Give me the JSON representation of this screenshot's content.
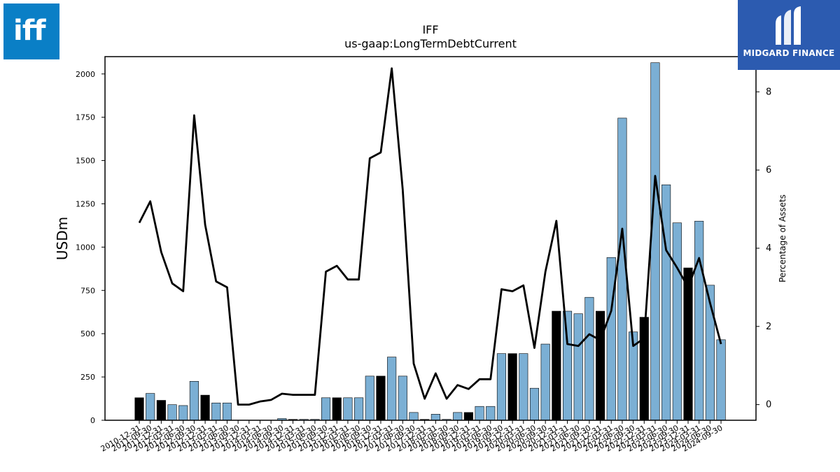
{
  "logos": {
    "left_text": "iff",
    "right_text": "MIDGARD FINANCE",
    "left_color": "#0a7fc6",
    "right_color": "#2c5bb0"
  },
  "chart_data": {
    "type": "bar",
    "title": "IFF",
    "subtitle": "us-gaap:LongTermDebtCurrent",
    "ylabel": "USDm",
    "y2label": "Percentage of Assets",
    "ylim": [
      0,
      2100
    ],
    "y2lim": [
      -0.4,
      8.9
    ],
    "yticks": [
      0,
      250,
      500,
      750,
      1000,
      1250,
      1500,
      1750,
      2000
    ],
    "y2ticks": [
      0,
      2,
      4,
      6,
      8
    ],
    "grid": false,
    "colors": {
      "bar_q4": "#000000",
      "bar_other": "#7bafd4",
      "line": "#000000"
    },
    "categories": [
      "2010-12-31",
      "2011-09-30",
      "2011-12-31",
      "2012-03-31",
      "2012-06-30",
      "2012-09-30",
      "2012-12-31",
      "2013-03-31",
      "2013-06-30",
      "2013-09-30",
      "2013-12-31",
      "2014-03-31",
      "2014-06-30",
      "2014-09-30",
      "2014-12-31",
      "2015-03-31",
      "2015-06-30",
      "2015-09-30",
      "2015-12-31",
      "2016-03-31",
      "2016-06-30",
      "2016-09-30",
      "2016-12-31",
      "2017-03-31",
      "2017-06-30",
      "2017-09-30",
      "2017-12-31",
      "2018-03-31",
      "2018-06-30",
      "2018-09-30",
      "2018-12-31",
      "2019-03-31",
      "2019-06-30",
      "2019-09-30",
      "2019-12-31",
      "2020-03-31",
      "2020-06-30",
      "2020-09-30",
      "2020-12-31",
      "2021-03-31",
      "2021-06-30",
      "2021-09-30",
      "2021-12-31",
      "2022-03-31",
      "2022-06-30",
      "2022-09-30",
      "2022-12-31",
      "2023-03-31",
      "2023-06-30",
      "2023-09-30",
      "2023-12-31",
      "2024-03-31",
      "2024-06-30",
      "2024-09-30"
    ],
    "xtick_labels": [
      "2010-12-31",
      "2011-09-30",
      "2011-12-31",
      "2012-03-31",
      "2012-06-30",
      "2012-09-30",
      "2012-12-31",
      "2013-03-31",
      "2013-06-30",
      "2013-09-30",
      "2013-12-31",
      "2014-03-31",
      "2014-06-30",
      "2014-09-30",
      "2014-12-31",
      "2015-03-31",
      "2015-06-30",
      "2015-09-30",
      "2015-12-31",
      "2016-03-31",
      "2016-06-30",
      "2016-09-30",
      "2016-12-31",
      "2017-03-31",
      "2017-06-30",
      "2017-09-30",
      "2017-12-31",
      "2018-03-31",
      "2018-06-30",
      "2018-09-30",
      "2018-12-31",
      "2019-03-31",
      "2019-06-30",
      "2019-09-30",
      "2019-12-31",
      "2020-03-31",
      "2020-06-30",
      "2020-09-30",
      "2020-12-31",
      "2021-03-31",
      "2021-06-30",
      "2021-09-30",
      "2021-12-31",
      "2022-03-31",
      "2022-06-30",
      "2022-09-30",
      "2022-12-31",
      "2023-03-31",
      "2023-06-30",
      "2023-09-30",
      "2023-12-31",
      "2024-03-31",
      "2024-06-30",
      "2024-09-30"
    ],
    "series": [
      {
        "axis": "left",
        "type": "bar",
        "values": [
          130,
          155,
          115,
          90,
          85,
          225,
          145,
          100,
          100,
          0,
          0,
          0,
          0,
          10,
          5,
          5,
          5,
          130,
          130,
          130,
          130,
          255,
          255,
          365,
          255,
          45,
          5,
          35,
          5,
          45,
          45,
          80,
          80,
          385,
          385,
          385,
          185,
          440,
          630,
          630,
          615,
          710,
          630,
          940,
          1745,
          510,
          595,
          2065,
          1360,
          1140,
          880,
          1150,
          780,
          465
        ]
      },
      {
        "axis": "right",
        "type": "line",
        "values": [
          4.65,
          5.2,
          3.9,
          3.1,
          2.9,
          7.4,
          4.6,
          3.15,
          3.0,
          0.0,
          0.0,
          0.08,
          0.12,
          0.28,
          0.25,
          0.25,
          0.25,
          3.4,
          3.55,
          3.2,
          3.2,
          6.3,
          6.45,
          8.6,
          5.5,
          1.05,
          0.15,
          0.8,
          0.15,
          0.5,
          0.4,
          0.65,
          0.65,
          2.95,
          2.9,
          3.05,
          1.45,
          3.4,
          4.7,
          1.55,
          1.5,
          1.8,
          1.65,
          2.4,
          4.5,
          1.5,
          1.7,
          5.85,
          3.95,
          3.5,
          3.0,
          3.75,
          2.6,
          1.55
        ]
      }
    ]
  }
}
